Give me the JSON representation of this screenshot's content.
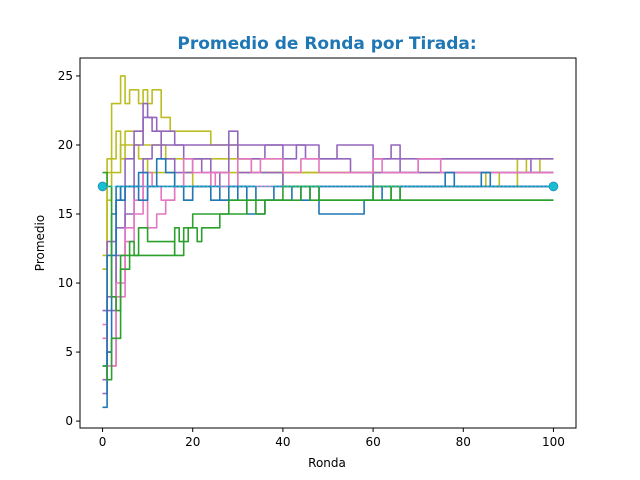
{
  "chart_data": {
    "type": "line",
    "title": "Promedio de Ronda por Tirada:",
    "title_color": "#1f77b4",
    "xlabel": "Ronda",
    "ylabel": "Promedio",
    "xlim": [
      -5,
      105
    ],
    "ylim": [
      -0.5,
      26.3
    ],
    "xticks": [
      0,
      20,
      40,
      60,
      80,
      100
    ],
    "yticks": [
      0,
      5,
      10,
      15,
      20,
      25
    ],
    "grid": false,
    "reference_line": {
      "y": 17,
      "color": "#17becf",
      "style": "dotted",
      "endpoints": [
        0,
        100
      ]
    },
    "series": [
      {
        "color": "#bcbd22",
        "points": [
          [
            0,
            11
          ],
          [
            1,
            18
          ],
          [
            2,
            23
          ],
          [
            4,
            25
          ],
          [
            5,
            23
          ],
          [
            6,
            24
          ],
          [
            8,
            23
          ],
          [
            9,
            24
          ],
          [
            10,
            23
          ],
          [
            11,
            24
          ],
          [
            13,
            22
          ],
          [
            15,
            21
          ],
          [
            20,
            21
          ],
          [
            24,
            20
          ],
          [
            28,
            20
          ],
          [
            30,
            19
          ],
          [
            35,
            19
          ],
          [
            40,
            18
          ],
          [
            60,
            18
          ],
          [
            70,
            18
          ],
          [
            90,
            18
          ],
          [
            95,
            18
          ],
          [
            100,
            18
          ]
        ]
      },
      {
        "color": "#bcbd22",
        "points": [
          [
            0,
            11
          ],
          [
            1,
            19
          ],
          [
            3,
            21
          ],
          [
            4,
            19
          ],
          [
            5,
            21
          ],
          [
            7,
            21
          ],
          [
            9,
            20
          ],
          [
            12,
            20
          ],
          [
            14,
            19
          ],
          [
            16,
            19
          ],
          [
            18,
            18
          ],
          [
            20,
            19
          ],
          [
            23,
            19
          ],
          [
            25,
            19
          ],
          [
            30,
            19
          ],
          [
            33,
            18
          ],
          [
            40,
            18
          ],
          [
            50,
            18
          ],
          [
            60,
            17
          ],
          [
            80,
            17
          ],
          [
            100,
            17
          ]
        ]
      },
      {
        "color": "#bcbd22",
        "points": [
          [
            0,
            12
          ],
          [
            1,
            16
          ],
          [
            2,
            18
          ],
          [
            4,
            20
          ],
          [
            6,
            20
          ],
          [
            8,
            19
          ],
          [
            10,
            18
          ],
          [
            12,
            18
          ],
          [
            14,
            18
          ],
          [
            16,
            17
          ],
          [
            18,
            18
          ],
          [
            20,
            17
          ],
          [
            24,
            18
          ],
          [
            26,
            18
          ],
          [
            30,
            18
          ],
          [
            40,
            17
          ],
          [
            50,
            17
          ],
          [
            70,
            17
          ],
          [
            85,
            18
          ],
          [
            88,
            17
          ],
          [
            92,
            19
          ],
          [
            94,
            18
          ],
          [
            97,
            19
          ],
          [
            100,
            19
          ]
        ]
      },
      {
        "color": "#9467bd",
        "points": [
          [
            0,
            8
          ],
          [
            1,
            13
          ],
          [
            3,
            16
          ],
          [
            5,
            19
          ],
          [
            7,
            21
          ],
          [
            9,
            23
          ],
          [
            10,
            22
          ],
          [
            12,
            21
          ],
          [
            14,
            21
          ],
          [
            16,
            20
          ],
          [
            18,
            20
          ],
          [
            20,
            20
          ],
          [
            24,
            20
          ],
          [
            28,
            20
          ],
          [
            30,
            19
          ],
          [
            34,
            19
          ],
          [
            36,
            20
          ],
          [
            40,
            20
          ],
          [
            45,
            19
          ],
          [
            50,
            19
          ],
          [
            55,
            18
          ],
          [
            60,
            19
          ],
          [
            64,
            19
          ],
          [
            66,
            18
          ],
          [
            70,
            19
          ],
          [
            80,
            19
          ],
          [
            90,
            19
          ],
          [
            98,
            19
          ],
          [
            100,
            19
          ]
        ]
      },
      {
        "color": "#9467bd",
        "points": [
          [
            0,
            2
          ],
          [
            1,
            9
          ],
          [
            3,
            14
          ],
          [
            5,
            17
          ],
          [
            7,
            20
          ],
          [
            9,
            22
          ],
          [
            11,
            21
          ],
          [
            13,
            20
          ],
          [
            16,
            20
          ],
          [
            18,
            19
          ],
          [
            20,
            19
          ],
          [
            24,
            18
          ],
          [
            28,
            21
          ],
          [
            30,
            20
          ],
          [
            35,
            20
          ],
          [
            40,
            19
          ],
          [
            43,
            20
          ],
          [
            46,
            20
          ],
          [
            48,
            19
          ],
          [
            50,
            19
          ],
          [
            52,
            20
          ],
          [
            58,
            20
          ],
          [
            60,
            19
          ],
          [
            64,
            20
          ],
          [
            66,
            19
          ],
          [
            70,
            19
          ],
          [
            80,
            19
          ],
          [
            95,
            18
          ],
          [
            100,
            18
          ]
        ]
      },
      {
        "color": "#9467bd",
        "points": [
          [
            0,
            3
          ],
          [
            1,
            8
          ],
          [
            3,
            12
          ],
          [
            5,
            15
          ],
          [
            7,
            17
          ],
          [
            9,
            19
          ],
          [
            11,
            20
          ],
          [
            13,
            19
          ],
          [
            16,
            18
          ],
          [
            20,
            19
          ],
          [
            22,
            18
          ],
          [
            26,
            17
          ],
          [
            30,
            18
          ],
          [
            36,
            18
          ],
          [
            40,
            17
          ],
          [
            50,
            17
          ],
          [
            60,
            18
          ],
          [
            70,
            18
          ],
          [
            80,
            18
          ],
          [
            100,
            18
          ]
        ]
      },
      {
        "color": "#e377c2",
        "points": [
          [
            0,
            7
          ],
          [
            1,
            5
          ],
          [
            2,
            4
          ],
          [
            3,
            10
          ],
          [
            5,
            14
          ],
          [
            7,
            15
          ],
          [
            9,
            17
          ],
          [
            10,
            14
          ],
          [
            12,
            15
          ],
          [
            14,
            16
          ],
          [
            16,
            17
          ],
          [
            18,
            16
          ],
          [
            20,
            17
          ],
          [
            24,
            18
          ],
          [
            28,
            17
          ],
          [
            30,
            19
          ],
          [
            33,
            18
          ],
          [
            35,
            19
          ],
          [
            40,
            18
          ],
          [
            44,
            19
          ],
          [
            48,
            18
          ],
          [
            55,
            18
          ],
          [
            60,
            19
          ],
          [
            62,
            18
          ],
          [
            70,
            19
          ],
          [
            75,
            18
          ],
          [
            80,
            18
          ],
          [
            100,
            18
          ]
        ]
      },
      {
        "color": "#e377c2",
        "points": [
          [
            0,
            6
          ],
          [
            1,
            4
          ],
          [
            3,
            9
          ],
          [
            5,
            13
          ],
          [
            7,
            16
          ],
          [
            9,
            18
          ],
          [
            11,
            17
          ],
          [
            13,
            16
          ],
          [
            16,
            17
          ],
          [
            18,
            19
          ],
          [
            20,
            18
          ],
          [
            25,
            17
          ],
          [
            30,
            17
          ],
          [
            40,
            17
          ],
          [
            50,
            17
          ],
          [
            70,
            17
          ],
          [
            100,
            17
          ]
        ]
      },
      {
        "color": "#1f77b4",
        "points": [
          [
            0,
            1
          ],
          [
            1,
            12
          ],
          [
            2,
            15
          ],
          [
            3,
            17
          ],
          [
            4,
            16
          ],
          [
            5,
            17
          ],
          [
            8,
            18
          ],
          [
            10,
            17
          ],
          [
            12,
            19
          ],
          [
            14,
            18
          ],
          [
            16,
            17
          ],
          [
            18,
            16
          ],
          [
            20,
            17
          ],
          [
            24,
            17
          ],
          [
            26,
            16
          ],
          [
            30,
            17
          ],
          [
            34,
            16
          ],
          [
            38,
            17
          ],
          [
            42,
            17
          ],
          [
            44,
            16
          ],
          [
            46,
            17
          ],
          [
            48,
            15
          ],
          [
            54,
            15
          ],
          [
            58,
            16
          ],
          [
            60,
            17
          ],
          [
            62,
            16
          ],
          [
            66,
            17
          ],
          [
            70,
            17
          ],
          [
            76,
            18
          ],
          [
            78,
            17
          ],
          [
            82,
            17
          ],
          [
            84,
            18
          ],
          [
            86,
            17
          ],
          [
            90,
            17
          ],
          [
            100,
            17
          ]
        ]
      },
      {
        "color": "#1f77b4",
        "points": [
          [
            0,
            4
          ],
          [
            1,
            5
          ],
          [
            2,
            12
          ],
          [
            3,
            16
          ],
          [
            4,
            17
          ],
          [
            6,
            17
          ],
          [
            8,
            16
          ],
          [
            10,
            17
          ],
          [
            14,
            17
          ],
          [
            20,
            17
          ],
          [
            24,
            16
          ],
          [
            28,
            17
          ],
          [
            32,
            15
          ],
          [
            34,
            15
          ],
          [
            36,
            16
          ],
          [
            40,
            16
          ],
          [
            42,
            17
          ],
          [
            50,
            17
          ],
          [
            60,
            17
          ],
          [
            100,
            17
          ]
        ]
      },
      {
        "color": "#2ca02c",
        "points": [
          [
            0,
            4
          ],
          [
            1,
            3
          ],
          [
            2,
            6
          ],
          [
            4,
            11
          ],
          [
            5,
            11
          ],
          [
            6,
            13
          ],
          [
            7,
            12
          ],
          [
            9,
            12
          ],
          [
            12,
            12
          ],
          [
            15,
            12
          ],
          [
            16,
            14
          ],
          [
            17,
            13
          ],
          [
            19,
            14
          ],
          [
            21,
            13
          ],
          [
            22,
            14
          ],
          [
            25,
            14
          ],
          [
            26,
            15
          ],
          [
            30,
            15
          ],
          [
            32,
            16
          ],
          [
            34,
            15
          ],
          [
            36,
            16
          ],
          [
            40,
            16
          ],
          [
            44,
            17
          ],
          [
            46,
            16
          ],
          [
            48,
            16
          ],
          [
            50,
            16
          ],
          [
            56,
            16
          ],
          [
            60,
            17
          ],
          [
            64,
            16
          ],
          [
            70,
            16
          ],
          [
            82,
            16
          ],
          [
            100,
            16
          ]
        ]
      },
      {
        "color": "#2ca02c",
        "points": [
          [
            0,
            18
          ],
          [
            1,
            17
          ],
          [
            2,
            9
          ],
          [
            3,
            8
          ],
          [
            4,
            12
          ],
          [
            6,
            12
          ],
          [
            8,
            14
          ],
          [
            10,
            13
          ],
          [
            12,
            13
          ],
          [
            14,
            13
          ],
          [
            16,
            12
          ],
          [
            18,
            14
          ],
          [
            20,
            15
          ],
          [
            24,
            15
          ],
          [
            28,
            16
          ],
          [
            32,
            16
          ],
          [
            35,
            16
          ],
          [
            40,
            17
          ],
          [
            44,
            17
          ],
          [
            48,
            16
          ],
          [
            60,
            16
          ],
          [
            64,
            17
          ],
          [
            66,
            16
          ],
          [
            70,
            16
          ],
          [
            80,
            16
          ],
          [
            100,
            16
          ]
        ]
      }
    ]
  }
}
